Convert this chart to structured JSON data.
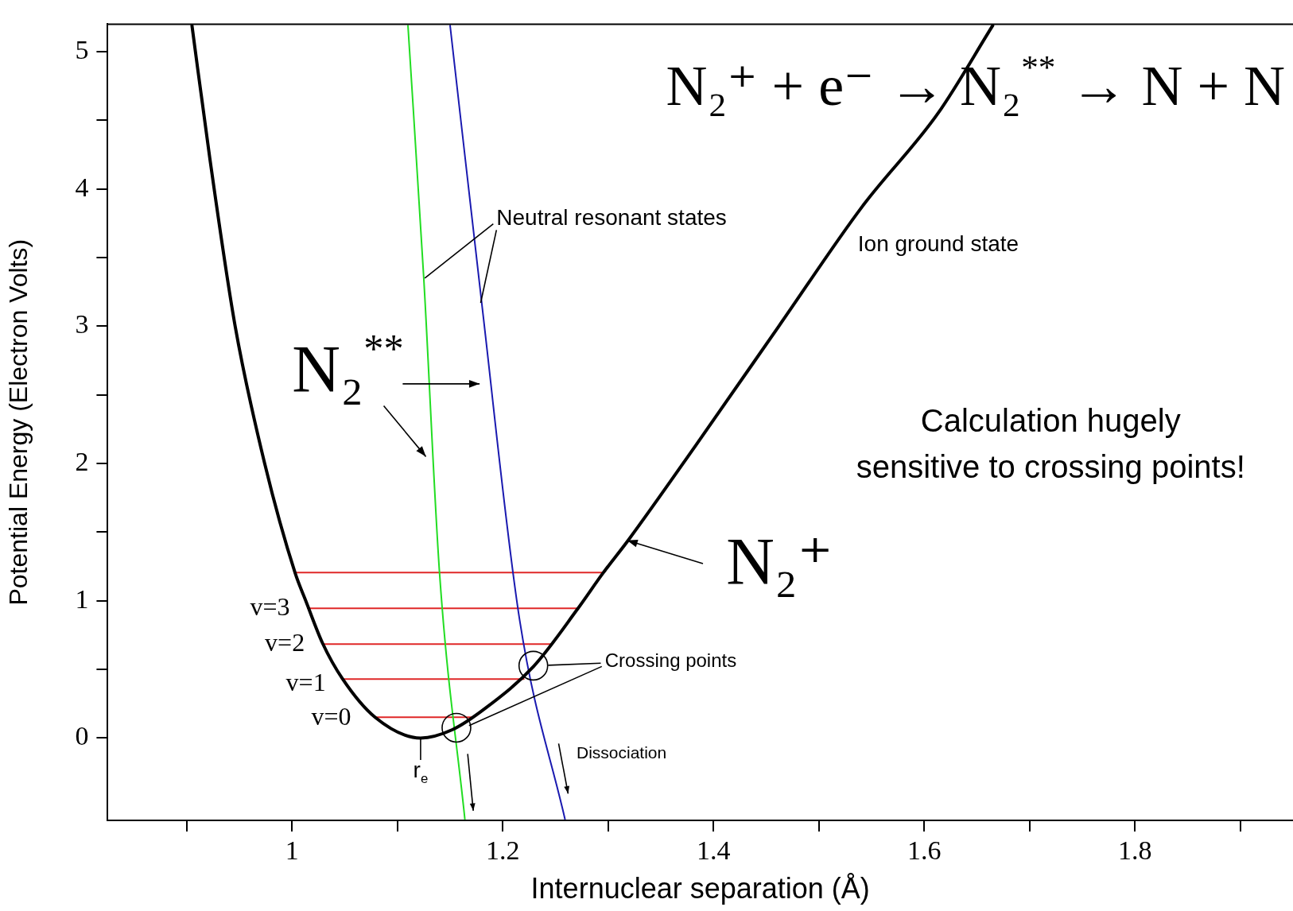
{
  "chart_data": {
    "type": "line",
    "xlabel": "Internuclear separation (Å)",
    "ylabel": "Potential Energy (Electron Volts)",
    "xlim": [
      0.825,
      1.95
    ],
    "ylim": [
      -0.6,
      5.2
    ],
    "xticks": [
      {
        "value": 0.9,
        "label": null
      },
      1,
      {
        "value": 1.1,
        "label": null
      },
      1.2,
      {
        "value": 1.3,
        "label": null
      },
      1.4,
      {
        "value": 1.5,
        "label": null
      },
      1.6,
      {
        "value": 1.7,
        "label": null
      },
      1.8,
      {
        "value": 1.9,
        "label": null
      }
    ],
    "yticks": [
      0,
      {
        "value": 0.5,
        "label": null
      },
      1,
      {
        "value": 1.5,
        "label": null
      },
      2,
      {
        "value": 2.5,
        "label": null
      },
      3,
      {
        "value": 3.5,
        "label": null
      },
      4,
      {
        "value": 4.5,
        "label": null
      },
      5
    ],
    "marker": "none",
    "line_style": "solid",
    "series": [
      {
        "color": "#000000",
        "x": [
          0.905,
          0.922,
          0.946,
          0.974,
          1.003,
          1.013,
          1.029,
          1.048,
          1.079,
          1.122,
          1.152,
          1.184,
          1.229,
          1.271,
          1.295,
          1.319,
          1.383,
          1.462,
          1.541,
          1.613,
          1.665
        ],
        "values": [
          5.19,
          4.22,
          3.0,
          2.0,
          1.2,
          1.0,
          0.69,
          0.43,
          0.15,
          0,
          0.06,
          0.22,
          0.52,
          0.94,
          1.2,
          1.44,
          2.13,
          3.0,
          3.87,
          4.55,
          5.19
        ]
      },
      {
        "color": "#22dd22",
        "x": [
          1.11,
          1.125,
          1.14,
          1.164
        ],
        "values": [
          5.19,
          3.35,
          1.2,
          -0.59
        ]
      },
      {
        "color": "#1a1ab0",
        "x": [
          1.15,
          1.18,
          1.216,
          1.259
        ],
        "values": [
          5.19,
          3.17,
          0.86,
          -0.59
        ]
      },
      {
        "color": "#e02828",
        "x": [
          1.003,
          1.295
        ],
        "values": [
          1.205,
          1.205
        ]
      },
      {
        "color": "#e02828",
        "x": [
          1.015,
          1.271
        ],
        "values": [
          0.944,
          0.944
        ]
      },
      {
        "color": "#e02828",
        "x": [
          1.029,
          1.246
        ],
        "values": [
          0.684,
          0.684
        ]
      },
      {
        "color": "#e02828",
        "x": [
          1.049,
          1.22
        ],
        "values": [
          0.429,
          0.429
        ]
      },
      {
        "color": "#e02828",
        "x": [
          1.079,
          1.172
        ],
        "values": [
          0.151,
          0.151
        ]
      }
    ],
    "annotations": [
      "N₂⁺ + e⁻ → N₂$^{**}$ → N + N",
      {
        "text": "Neutral resonant states",
        "x": 1.126,
        "y": 3.35
      },
      "Ion ground state",
      "N₂$^{**}$",
      "Calculation hugely\nsensitive to crossing points!",
      "N₂⁺",
      {
        "text": "Crossing points",
        "x": 1.168,
        "y": 0.09
      },
      "Dissociation",
      "v=3",
      "v=2",
      "v=1",
      "v=0",
      "r$_{e}$"
    ]
  }
}
